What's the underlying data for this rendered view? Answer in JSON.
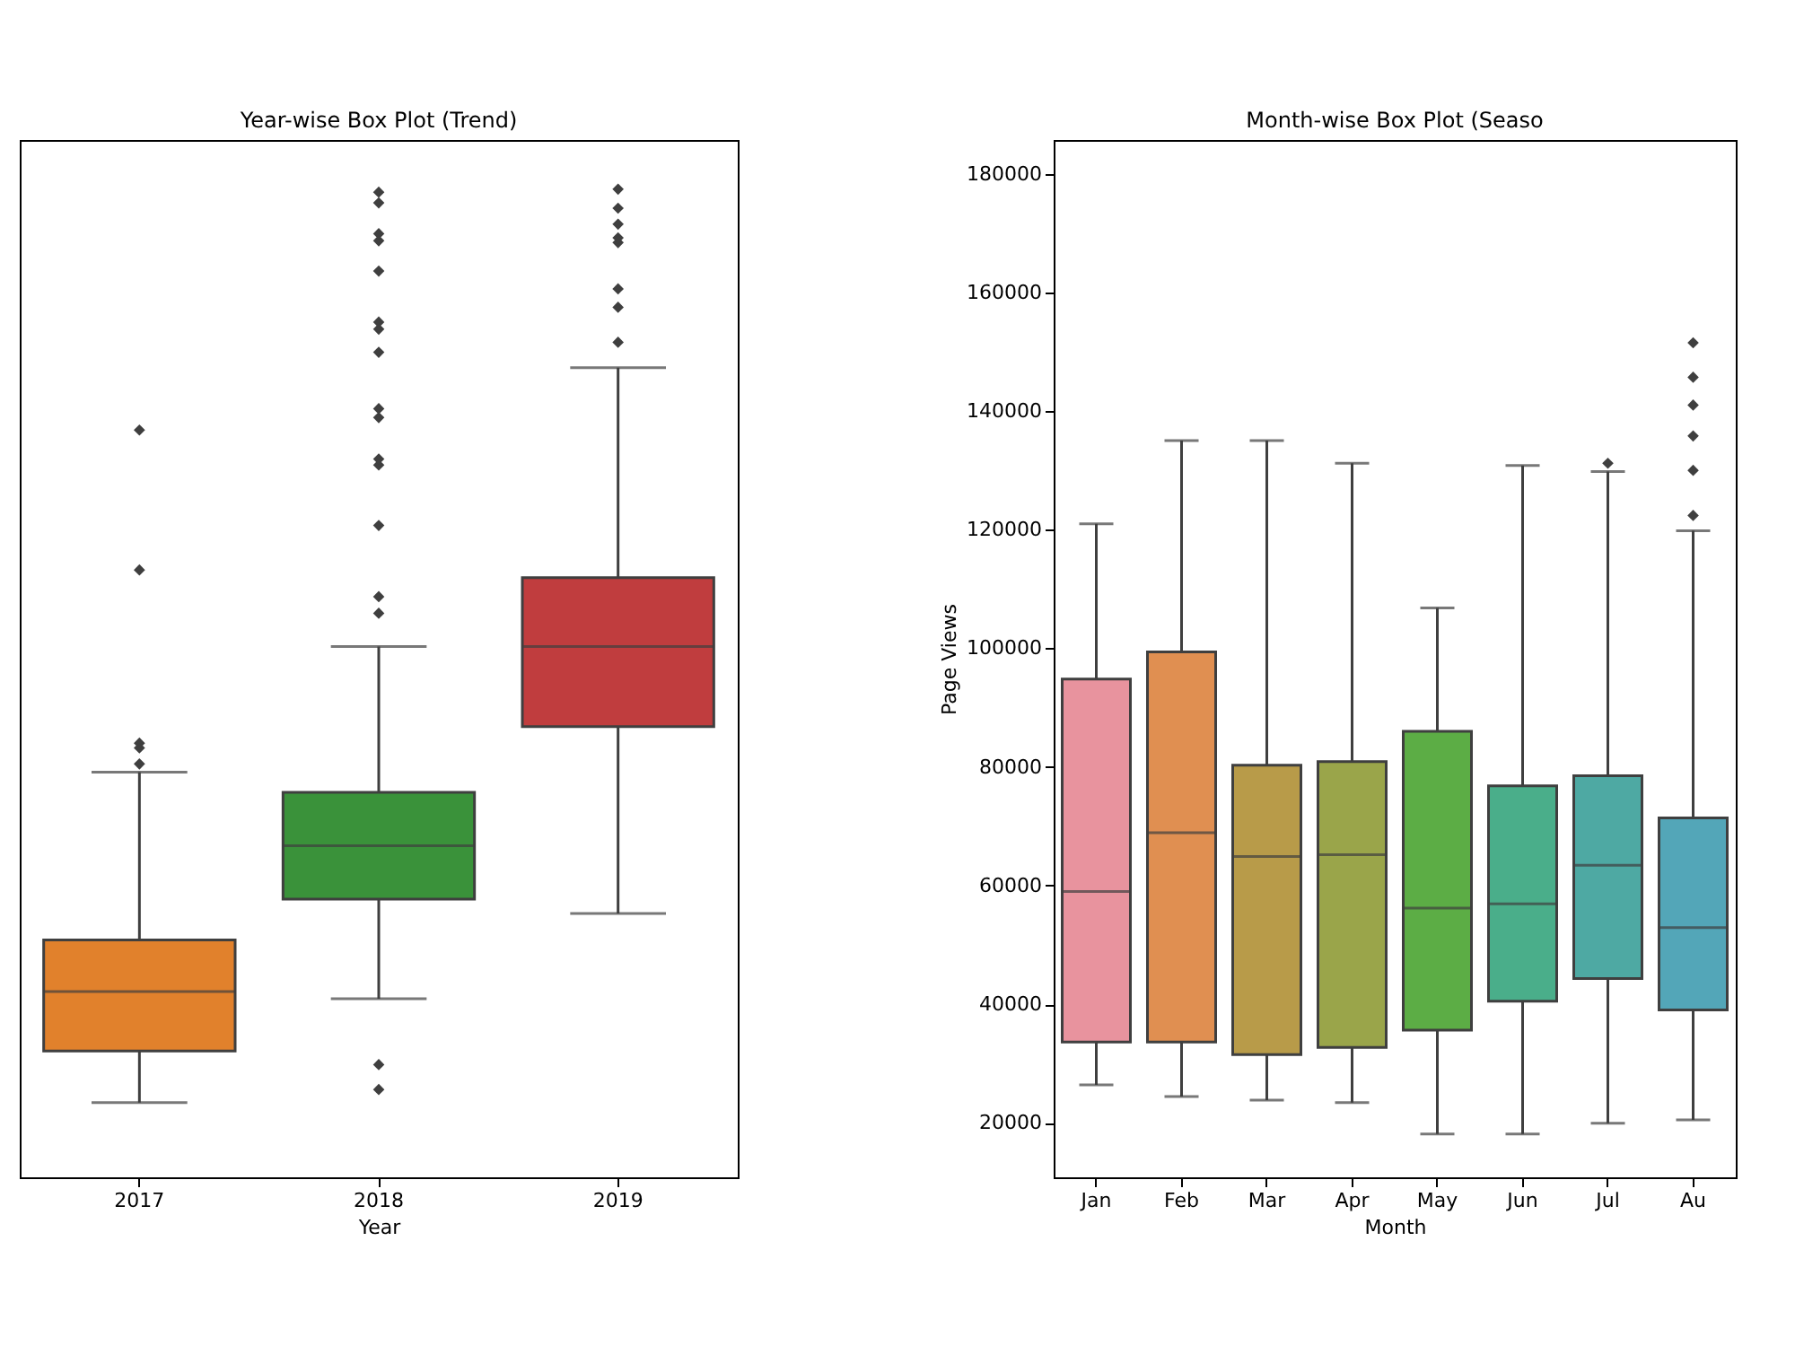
{
  "chart_data": [
    {
      "type": "box",
      "title": "Year-wise Box Plot (Trend)",
      "xlabel": "Year",
      "categories": [
        "2017",
        "2018",
        "2019"
      ],
      "colors": [
        "#e1812c",
        "#3a923a",
        "#c03d3e"
      ],
      "ylim": [
        10800,
        185700
      ],
      "tick_labels": "x",
      "grid": false,
      "legend": false,
      "boxes": [
        {
          "low": 23400,
          "q1": 32100,
          "median": 42100,
          "q3": 50800,
          "high": 79100,
          "outliers": [
            80500,
            83200,
            84000,
            113200,
            136800
          ]
        },
        {
          "low": 40900,
          "q1": 57700,
          "median": 66700,
          "q3": 75700,
          "high": 100300,
          "outliers": [
            25600,
            29800,
            105900,
            108700,
            120700,
            130900,
            131900,
            138900,
            140400,
            149900,
            153800,
            155000,
            163600,
            168700,
            169900,
            175100,
            176900
          ]
        },
        {
          "low": 55300,
          "q1": 86800,
          "median": 100300,
          "q3": 111900,
          "high": 147300,
          "outliers": [
            151600,
            157500,
            160600,
            168400,
            169200,
            171500,
            174200,
            177400
          ]
        }
      ]
    },
    {
      "type": "box",
      "title": "Month-wise Box Plot (Seaso",
      "xlabel": "Month",
      "ylabel": "Page Views",
      "categories": [
        "Jan",
        "Feb",
        "Mar",
        "Apr",
        "May",
        "Jun",
        "Jul",
        "Au"
      ],
      "colors": [
        "#e8939e",
        "#e08f51",
        "#b89b49",
        "#9aa54a",
        "#5cad45",
        "#4aae8a",
        "#4ea9a3",
        "#53a6b8"
      ],
      "ylim": [
        10800,
        185700
      ],
      "yticks": [
        20000,
        40000,
        60000,
        80000,
        100000,
        120000,
        140000,
        160000,
        180000
      ],
      "grid": false,
      "legend": false,
      "boxes": [
        {
          "low": 26400,
          "q1": 33600,
          "median": 59000,
          "q3": 94800,
          "high": 121000
        },
        {
          "low": 24400,
          "q1": 33600,
          "median": 68900,
          "q3": 99400,
          "high": 135000
        },
        {
          "low": 23800,
          "q1": 31500,
          "median": 64900,
          "q3": 80300,
          "high": 135000
        },
        {
          "low": 23400,
          "q1": 32700,
          "median": 65200,
          "q3": 80900,
          "high": 131200
        },
        {
          "low": 18100,
          "q1": 35600,
          "median": 56200,
          "q3": 86000,
          "high": 106800
        },
        {
          "low": 18100,
          "q1": 40500,
          "median": 56900,
          "q3": 76800,
          "high": 130800
        },
        {
          "low": 19900,
          "q1": 44300,
          "median": 63400,
          "q3": 78500,
          "high": 129800,
          "outliers": [
            131200
          ]
        },
        {
          "low": 20500,
          "q1": 39000,
          "median": 52900,
          "q3": 71400,
          "high": 119800,
          "outliers": [
            122400,
            130000,
            135800,
            141000,
            145700,
            151500
          ]
        }
      ]
    }
  ]
}
